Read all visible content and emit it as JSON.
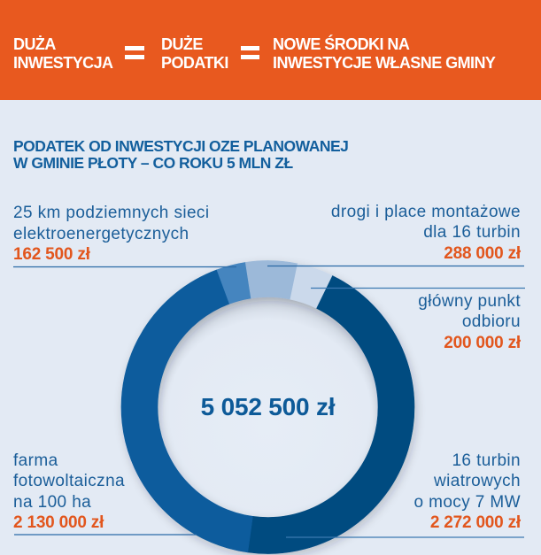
{
  "header": {
    "terms": [
      {
        "lines": [
          "DUŻA",
          "INWESTYCJA"
        ]
      },
      {
        "lines": [
          "DUŻE",
          "PODATKI"
        ]
      },
      {
        "lines": [
          "NOWE ŚRODKI NA",
          "INWESTYCJE WŁASNE GMINY"
        ]
      }
    ],
    "operator": "="
  },
  "title": {
    "lines": [
      "PODATEK OD INWESTYCJI OZE PLANOWANEJ",
      "W GMINIE PŁOTY – CO ROKU 5 MLN ZŁ"
    ]
  },
  "colors": {
    "header_background": "#e8591f",
    "page_background": "#e3eaf4",
    "title_text": "#135f9d",
    "label_text": "#1b5e99",
    "value_text": "#e2561d",
    "leader_line": "#2a6aa6"
  },
  "chart_data": {
    "type": "pie",
    "variant": "donut",
    "title": "PODATEK OD INWESTYCJI OZE PLANOWANEJ W GMINIE PŁOTY – CO ROKU 5 MLN ZŁ",
    "center_label": "5 052 500 zł",
    "total": 5052500,
    "unit": "zł",
    "start_angle_deg": 26,
    "direction": "clockwise",
    "legend_position": "callouts around ring",
    "categories": [
      "16 turbin wiatrowych o mocy 7 MW",
      "farma fotowoltaiczna na 100 ha",
      "25 km podziemnych sieci elektroenergetycznych",
      "drogi i place montażowe dla 16 turbin",
      "główny punkt odbioru"
    ],
    "values": [
      2272000,
      2130000,
      162500,
      288000,
      200000
    ],
    "segments": [
      {
        "key": "wind",
        "label_lines": [
          "16 turbin",
          "wiatrowych",
          "o mocy 7 MW"
        ],
        "value": 2272000,
        "value_label": "2 272 000 zł",
        "color": "#034b80"
      },
      {
        "key": "pv",
        "label_lines": [
          "farma",
          "fotowoltaiczna",
          "na 100 ha"
        ],
        "value": 2130000,
        "value_label": "2 130 000 zł",
        "color": "#0b5c9d"
      },
      {
        "key": "cables",
        "label_lines": [
          "25 km podziemnych sieci",
          "elektroenergetycznych"
        ],
        "value": 162500,
        "value_label": "162 500 zł",
        "color": "#4585bf"
      },
      {
        "key": "roads",
        "label_lines": [
          "drogi i place montażowe",
          "dla 16 turbin"
        ],
        "value": 288000,
        "value_label": "288 000 zł",
        "color": "#9cb9d9"
      },
      {
        "key": "substation",
        "label_lines": [
          "główny punkt",
          "odbioru"
        ],
        "value": 200000,
        "value_label": "200 000 zł",
        "color": "#cbd9eb"
      }
    ]
  }
}
